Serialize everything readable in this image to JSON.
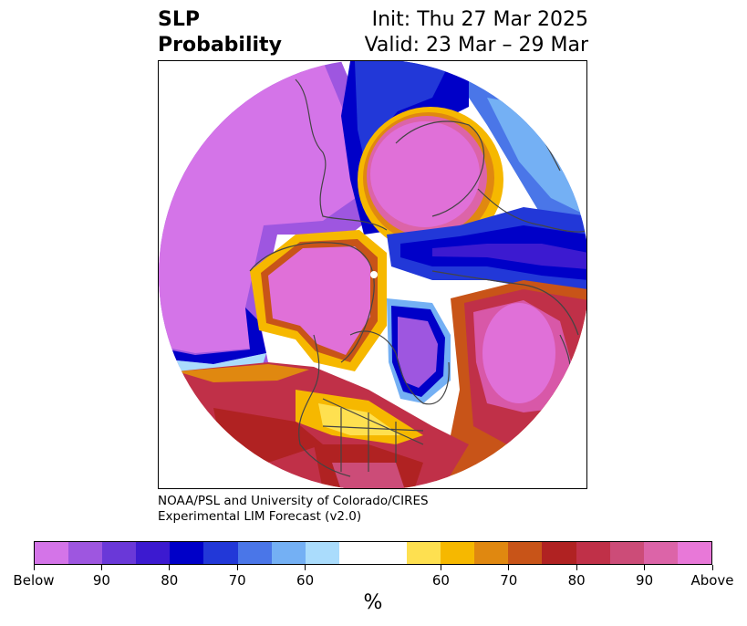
{
  "title": {
    "left_line1": "SLP",
    "left_line2": "Probability",
    "right_line1": "Init: Thu 27 Mar 2025",
    "right_line2": "Valid: 23 Mar – 29 Mar"
  },
  "credit": {
    "line1": "NOAA/PSL and University of Colorado/CIRES",
    "line2": "Experimental LIM Forecast (v2.0)"
  },
  "colorbar": {
    "colors": [
      "#d474e8",
      "#9e56e0",
      "#6a38d8",
      "#3c1ad0",
      "#0000c8",
      "#2238d8",
      "#4a76e8",
      "#74b0f4",
      "#aadcfc",
      "#ffffff",
      "#ffffff",
      "#fee050",
      "#f6b800",
      "#e08810",
      "#c85418",
      "#b02222",
      "#c03048",
      "#cc4c78",
      "#dc64a8",
      "#e878d8"
    ],
    "tick_labels": [
      "Below",
      "90",
      "80",
      "70",
      "60",
      "60",
      "70",
      "80",
      "90",
      "Above"
    ],
    "unit": "%"
  },
  "map": {
    "colors": {
      "above": "#e070d8",
      "above_90": "#d858a8",
      "above_80": "#c03048",
      "above_70": "#c85418",
      "above_60": "#f6b800",
      "below": "#d474e8",
      "below_90": "#9e56e0",
      "below_80": "#3c1ad0",
      "below_70": "#0000c8",
      "below_60": "#74b0f4",
      "coast": "#444444"
    }
  }
}
